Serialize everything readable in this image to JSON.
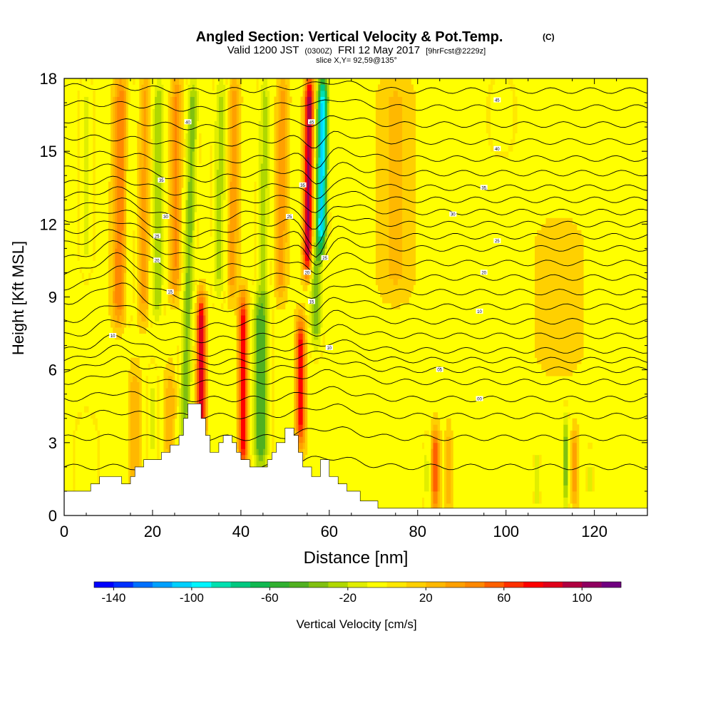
{
  "chart_data": {
    "type": "heatmap",
    "title": {
      "main": "Angled Section: Vertical Velocity & Pot.Temp.",
      "units": "(C)",
      "valid_prefix": "Valid 1200 JST",
      "valid_zulu": "(0300Z)",
      "valid_date": "FRI 12 May 2017",
      "forecast": "[9hrFcst@2229z]",
      "slice": "slice X,Y= 92,59@135°"
    },
    "xlabel": "Distance [nm]",
    "ylabel": "Height [Kft MSL]",
    "xlim": [
      0,
      132
    ],
    "ylim": [
      0,
      18
    ],
    "x_ticks": [
      "0",
      "20",
      "40",
      "60",
      "80",
      "100",
      "120"
    ],
    "y_ticks": [
      "0",
      "3",
      "6",
      "9",
      "12",
      "15",
      "18"
    ],
    "colorbar": {
      "label": "Vertical Velocity [cm/s]",
      "ticks": [
        "-140",
        "-100",
        "-60",
        "-20",
        "20",
        "60",
        "100"
      ],
      "min": -150,
      "max": 120,
      "step": 10,
      "colors": [
        "#0000ff",
        "#0030ff",
        "#0070ff",
        "#00a0ff",
        "#00d0ff",
        "#00f5ff",
        "#00e0b0",
        "#00c880",
        "#10b850",
        "#30b030",
        "#50b020",
        "#80c010",
        "#b0d800",
        "#e0ee00",
        "#ffff00",
        "#ffe800",
        "#ffd000",
        "#ffb800",
        "#ffa000",
        "#ff8800",
        "#ff6000",
        "#ff3000",
        "#ff0000",
        "#e0001a",
        "#b00040",
        "#900060",
        "#700080"
      ]
    },
    "terrain_kft": [
      [
        0,
        1
      ],
      [
        6,
        1
      ],
      [
        6,
        1.3
      ],
      [
        8,
        1.3
      ],
      [
        8,
        1.6
      ],
      [
        13,
        1.6
      ],
      [
        13,
        1.3
      ],
      [
        15,
        1.3
      ],
      [
        15,
        1.6
      ],
      [
        16,
        1.6
      ],
      [
        16,
        2
      ],
      [
        18,
        2
      ],
      [
        18,
        2.3
      ],
      [
        22,
        2.3
      ],
      [
        22,
        2.6
      ],
      [
        24,
        2.6
      ],
      [
        24,
        2.9
      ],
      [
        26,
        2.9
      ],
      [
        26,
        3.3
      ],
      [
        27,
        3.3
      ],
      [
        27,
        4
      ],
      [
        28,
        4
      ],
      [
        28,
        4.6
      ],
      [
        31,
        4.6
      ],
      [
        31,
        4
      ],
      [
        32,
        4
      ],
      [
        32,
        3.3
      ],
      [
        33,
        3.3
      ],
      [
        33,
        2.6
      ],
      [
        35,
        2.6
      ],
      [
        35,
        3
      ],
      [
        36,
        3
      ],
      [
        36,
        3.3
      ],
      [
        38,
        3.3
      ],
      [
        38,
        3
      ],
      [
        39,
        3
      ],
      [
        39,
        2.6
      ],
      [
        40,
        2.6
      ],
      [
        40,
        2.3
      ],
      [
        42,
        2.3
      ],
      [
        42,
        2
      ],
      [
        46,
        2
      ],
      [
        46,
        2.3
      ],
      [
        47,
        2.3
      ],
      [
        47,
        2.6
      ],
      [
        48,
        2.6
      ],
      [
        48,
        3
      ],
      [
        50,
        3
      ],
      [
        50,
        3.6
      ],
      [
        52,
        3.6
      ],
      [
        52,
        3.3
      ],
      [
        53,
        3.3
      ],
      [
        53,
        2.6
      ],
      [
        54,
        2.6
      ],
      [
        54,
        2
      ],
      [
        56,
        2
      ],
      [
        56,
        1.6
      ],
      [
        58,
        1.6
      ],
      [
        58,
        2.3
      ],
      [
        60,
        2.3
      ],
      [
        60,
        1.6
      ],
      [
        62,
        1.6
      ],
      [
        62,
        1.3
      ],
      [
        64,
        1.3
      ],
      [
        64,
        1
      ],
      [
        67,
        1
      ],
      [
        67,
        0.6
      ],
      [
        71,
        0.6
      ],
      [
        71,
        0.3
      ],
      [
        132,
        0.3
      ]
    ],
    "theta_contours": {
      "bottoms_kft": [
        2.0,
        3.2,
        4.1,
        4.8,
        5.5,
        6.0,
        6.4,
        6.8,
        7.4,
        8.0,
        8.6,
        9.2,
        9.8,
        10.4,
        11.0,
        11.5,
        12.0,
        12.5,
        13.0,
        13.5,
        14.1,
        14.7,
        15.4,
        16.1,
        16.8,
        17.5,
        18.2,
        18.9
      ],
      "labels": [
        {
          "text": "10",
          "at": [
            11,
            7.4
          ]
        },
        {
          "text": "15",
          "at": [
            24,
            9.2
          ]
        },
        {
          "text": "20",
          "at": [
            21,
            10.5
          ]
        },
        {
          "text": "25",
          "at": [
            21,
            11.5
          ]
        },
        {
          "text": "30",
          "at": [
            23,
            12.3
          ]
        },
        {
          "text": "35",
          "at": [
            22,
            13.8
          ]
        },
        {
          "text": "40",
          "at": [
            28,
            16.2
          ]
        },
        {
          "text": "25",
          "at": [
            51,
            12.3
          ]
        },
        {
          "text": "35",
          "at": [
            54,
            13.6
          ]
        },
        {
          "text": "45",
          "at": [
            56,
            16.2
          ]
        },
        {
          "text": "10",
          "at": [
            60,
            6.9
          ]
        },
        {
          "text": "15",
          "at": [
            56,
            8.8
          ]
        },
        {
          "text": "20",
          "at": [
            55,
            10.0
          ]
        },
        {
          "text": "25",
          "at": [
            59,
            10.6
          ]
        },
        {
          "text": "05",
          "at": [
            85,
            6.0
          ]
        },
        {
          "text": "00",
          "at": [
            94,
            4.8
          ]
        },
        {
          "text": "10",
          "at": [
            94,
            8.4
          ]
        },
        {
          "text": "20",
          "at": [
            95,
            10.0
          ]
        },
        {
          "text": "25",
          "at": [
            98,
            11.3
          ]
        },
        {
          "text": "30",
          "at": [
            88,
            12.4
          ]
        },
        {
          "text": "35",
          "at": [
            95,
            13.5
          ]
        },
        {
          "text": "40",
          "at": [
            98,
            15.1
          ]
        },
        {
          "text": "45",
          "at": [
            98,
            17.1
          ]
        }
      ]
    }
  }
}
